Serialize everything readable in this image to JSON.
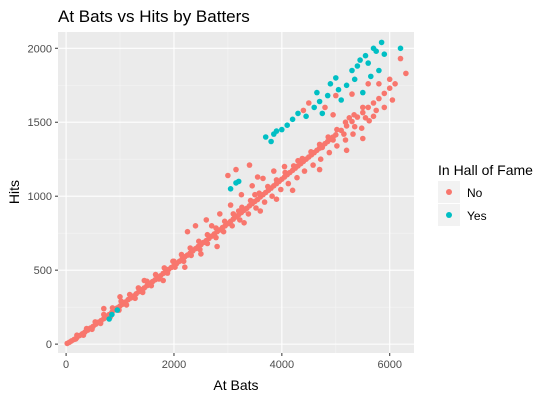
{
  "chart_data": {
    "type": "scatter",
    "title": "At Bats vs Hits by Batters",
    "xlabel": "At Bats",
    "ylabel": "Hits",
    "xlim": [
      -150,
      6450
    ],
    "ylim": [
      -60,
      2110
    ],
    "x_ticks": [
      0,
      2000,
      4000,
      6000
    ],
    "y_ticks": [
      0,
      500,
      1000,
      1500,
      2000
    ],
    "grid": true,
    "legend": {
      "title": "In Hall of Fame",
      "placement": "right",
      "entries": [
        "No",
        "Yes"
      ]
    },
    "series": [
      {
        "name": "No",
        "color": "#F8766D",
        "points": [
          [
            20,
            5
          ],
          [
            60,
            12
          ],
          [
            100,
            22
          ],
          [
            150,
            32
          ],
          [
            200,
            45
          ],
          [
            250,
            58
          ],
          [
            300,
            70
          ],
          [
            350,
            82
          ],
          [
            400,
            95
          ],
          [
            450,
            108
          ],
          [
            500,
            120
          ],
          [
            550,
            135
          ],
          [
            600,
            148
          ],
          [
            650,
            160
          ],
          [
            700,
            172
          ],
          [
            750,
            188
          ],
          [
            800,
            200
          ],
          [
            850,
            215
          ],
          [
            900,
            232
          ],
          [
            950,
            245
          ],
          [
            1000,
            258
          ],
          [
            1050,
            270
          ],
          [
            1100,
            285
          ],
          [
            1150,
            300
          ],
          [
            1200,
            312
          ],
          [
            1250,
            325
          ],
          [
            1300,
            340
          ],
          [
            1350,
            355
          ],
          [
            1400,
            368
          ],
          [
            1450,
            380
          ],
          [
            1500,
            395
          ],
          [
            1550,
            410
          ],
          [
            1600,
            422
          ],
          [
            1650,
            435
          ],
          [
            1700,
            450
          ],
          [
            1750,
            462
          ],
          [
            1800,
            478
          ],
          [
            1850,
            492
          ],
          [
            1900,
            505
          ],
          [
            1950,
            518
          ],
          [
            2000,
            530
          ],
          [
            2050,
            545
          ],
          [
            2100,
            560
          ],
          [
            2150,
            575
          ],
          [
            2200,
            590
          ],
          [
            2250,
            602
          ],
          [
            2300,
            615
          ],
          [
            2350,
            630
          ],
          [
            2400,
            645
          ],
          [
            2450,
            660
          ],
          [
            2500,
            672
          ],
          [
            2550,
            688
          ],
          [
            2600,
            700
          ],
          [
            2650,
            715
          ],
          [
            2700,
            730
          ],
          [
            2750,
            745
          ],
          [
            2800,
            760
          ],
          [
            2850,
            772
          ],
          [
            2900,
            788
          ],
          [
            2950,
            800
          ],
          [
            3000,
            815
          ],
          [
            3050,
            830
          ],
          [
            3100,
            845
          ],
          [
            3150,
            860
          ],
          [
            3200,
            875
          ],
          [
            3250,
            890
          ],
          [
            3300,
            905
          ],
          [
            3350,
            918
          ],
          [
            3400,
            935
          ],
          [
            3450,
            950
          ],
          [
            3500,
            965
          ],
          [
            3550,
            978
          ],
          [
            3600,
            995
          ],
          [
            3650,
            1010
          ],
          [
            3700,
            1025
          ],
          [
            3750,
            1040
          ],
          [
            3800,
            1055
          ],
          [
            3850,
            1070
          ],
          [
            3900,
            1085
          ],
          [
            3950,
            1100
          ],
          [
            4000,
            1115
          ],
          [
            4050,
            1130
          ],
          [
            4100,
            1145
          ],
          [
            4150,
            1160
          ],
          [
            4200,
            1175
          ],
          [
            4250,
            1190
          ],
          [
            4300,
            1205
          ],
          [
            4350,
            1220
          ],
          [
            4400,
            1235
          ],
          [
            4450,
            1250
          ],
          [
            4500,
            1265
          ],
          [
            4550,
            1280
          ],
          [
            4600,
            1295
          ],
          [
            4650,
            1310
          ],
          [
            4700,
            1325
          ],
          [
            4750,
            1340
          ],
          [
            4800,
            1355
          ],
          [
            4850,
            1370
          ],
          [
            4900,
            1385
          ],
          [
            4950,
            1400
          ],
          [
            5000,
            1415
          ],
          [
            5100,
            1445
          ],
          [
            5200,
            1475
          ],
          [
            5300,
            1505
          ],
          [
            5400,
            1535
          ],
          [
            5500,
            1565
          ],
          [
            5600,
            1600
          ],
          [
            5700,
            1630
          ],
          [
            5800,
            1660
          ],
          [
            5900,
            1695
          ],
          [
            6000,
            1730
          ],
          [
            6100,
            1760
          ],
          [
            6300,
            1830
          ],
          [
            180,
            35
          ],
          [
            320,
            60
          ],
          [
            480,
            100
          ],
          [
            640,
            140
          ],
          [
            820,
            185
          ],
          [
            980,
            230
          ],
          [
            1120,
            265
          ],
          [
            1280,
            310
          ],
          [
            1420,
            350
          ],
          [
            1580,
            395
          ],
          [
            1720,
            440
          ],
          [
            1880,
            480
          ],
          [
            2020,
            520
          ],
          [
            2180,
            560
          ],
          [
            2320,
            600
          ],
          [
            2480,
            640
          ],
          [
            2620,
            680
          ],
          [
            2780,
            720
          ],
          [
            2920,
            760
          ],
          [
            3080,
            800
          ],
          [
            3220,
            840
          ],
          [
            3380,
            880
          ],
          [
            3520,
            920
          ],
          [
            3680,
            960
          ],
          [
            3820,
            1000
          ],
          [
            3980,
            1045
          ],
          [
            4120,
            1085
          ],
          [
            4280,
            1125
          ],
          [
            4420,
            1170
          ],
          [
            4580,
            1210
          ],
          [
            4720,
            1250
          ],
          [
            4880,
            1295
          ],
          [
            5020,
            1340
          ],
          [
            5180,
            1380
          ],
          [
            5320,
            1420
          ],
          [
            5480,
            1460
          ],
          [
            5620,
            1510
          ],
          [
            200,
            60
          ],
          [
            380,
            105
          ],
          [
            540,
            150
          ],
          [
            700,
            200
          ],
          [
            860,
            245
          ],
          [
            1020,
            290
          ],
          [
            1180,
            335
          ],
          [
            1340,
            380
          ],
          [
            1500,
            425
          ],
          [
            1660,
            470
          ],
          [
            1820,
            515
          ],
          [
            1980,
            560
          ],
          [
            2140,
            605
          ],
          [
            2300,
            650
          ],
          [
            2460,
            695
          ],
          [
            2620,
            740
          ],
          [
            2780,
            785
          ],
          [
            2940,
            830
          ],
          [
            3100,
            880
          ],
          [
            3260,
            925
          ],
          [
            3420,
            970
          ],
          [
            3580,
            1020
          ],
          [
            3740,
            1065
          ],
          [
            3900,
            1110
          ],
          [
            4060,
            1160
          ],
          [
            4220,
            1205
          ],
          [
            4380,
            1255
          ],
          [
            4540,
            1300
          ],
          [
            4700,
            1350
          ],
          [
            4860,
            1400
          ],
          [
            5020,
            1450
          ],
          [
            5180,
            1500
          ],
          [
            5340,
            1550
          ],
          [
            5500,
            1600
          ],
          [
            2250,
            760
          ],
          [
            2400,
            800
          ],
          [
            2600,
            840
          ],
          [
            2850,
            880
          ],
          [
            3050,
            940
          ],
          [
            3250,
            1010
          ],
          [
            3450,
            1070
          ],
          [
            3650,
            1120
          ],
          [
            3850,
            1170
          ],
          [
            4050,
            1200
          ],
          [
            4300,
            1240
          ],
          [
            4550,
            1290
          ],
          [
            4750,
            1330
          ],
          [
            4950,
            1380
          ],
          [
            5150,
            1420
          ],
          [
            5350,
            1470
          ],
          [
            5550,
            1530
          ],
          [
            5750,
            1580
          ],
          [
            3000,
            1140
          ],
          [
            3150,
            1180
          ],
          [
            3400,
            1210
          ],
          [
            3550,
            1130
          ],
          [
            4500,
            1630
          ],
          [
            4800,
            1600
          ],
          [
            5000,
            1680
          ],
          [
            5300,
            1690
          ],
          [
            5600,
            1760
          ],
          [
            5800,
            1760
          ],
          [
            6000,
            1790
          ],
          [
            6200,
            1930
          ],
          [
            4400,
            1580
          ],
          [
            4950,
            1550
          ],
          [
            5250,
            1530
          ],
          [
            3300,
            820
          ],
          [
            3600,
            900
          ],
          [
            2800,
            660
          ],
          [
            2500,
            610
          ],
          [
            3900,
            980
          ],
          [
            4200,
            1040
          ],
          [
            4700,
            1180
          ],
          [
            5200,
            1310
          ],
          [
            5500,
            1390
          ],
          [
            5700,
            1540
          ],
          [
            5900,
            1600
          ],
          [
            6050,
            1650
          ],
          [
            1000,
            320
          ],
          [
            700,
            240
          ],
          [
            1450,
            430
          ],
          [
            2000,
            560
          ],
          [
            1800,
            430
          ],
          [
            2200,
            520
          ],
          [
            2700,
            800
          ],
          [
            3200,
            900
          ],
          [
            3500,
            1010
          ]
        ]
      },
      {
        "name": "Yes",
        "color": "#00BFC4",
        "points": [
          [
            5300,
            1850
          ],
          [
            5450,
            1920
          ],
          [
            5550,
            1950
          ],
          [
            5700,
            2000
          ],
          [
            5750,
            1980
          ],
          [
            5850,
            2040
          ],
          [
            5900,
            1960
          ],
          [
            6200,
            2000
          ],
          [
            5600,
            1900
          ],
          [
            5400,
            1880
          ],
          [
            5200,
            1750
          ],
          [
            4900,
            1760
          ],
          [
            5050,
            1720
          ],
          [
            4850,
            1680
          ],
          [
            4700,
            1640
          ],
          [
            4600,
            1600
          ],
          [
            4300,
            1560
          ],
          [
            4200,
            1520
          ],
          [
            3900,
            1440
          ],
          [
            3850,
            1420
          ],
          [
            4100,
            1480
          ],
          [
            4450,
            1540
          ],
          [
            4650,
            1700
          ],
          [
            5000,
            1800
          ],
          [
            5100,
            1650
          ],
          [
            5350,
            1790
          ],
          [
            5650,
            1810
          ],
          [
            3050,
            1050
          ],
          [
            3150,
            1090
          ],
          [
            3800,
            1370
          ],
          [
            3200,
            1100
          ],
          [
            800,
            170
          ],
          [
            850,
            200
          ],
          [
            950,
            230
          ],
          [
            3700,
            1400
          ],
          [
            4000,
            1450
          ],
          [
            4750,
            1560
          ],
          [
            5500,
            1700
          ],
          [
            5800,
            1850
          ]
        ]
      }
    ]
  }
}
